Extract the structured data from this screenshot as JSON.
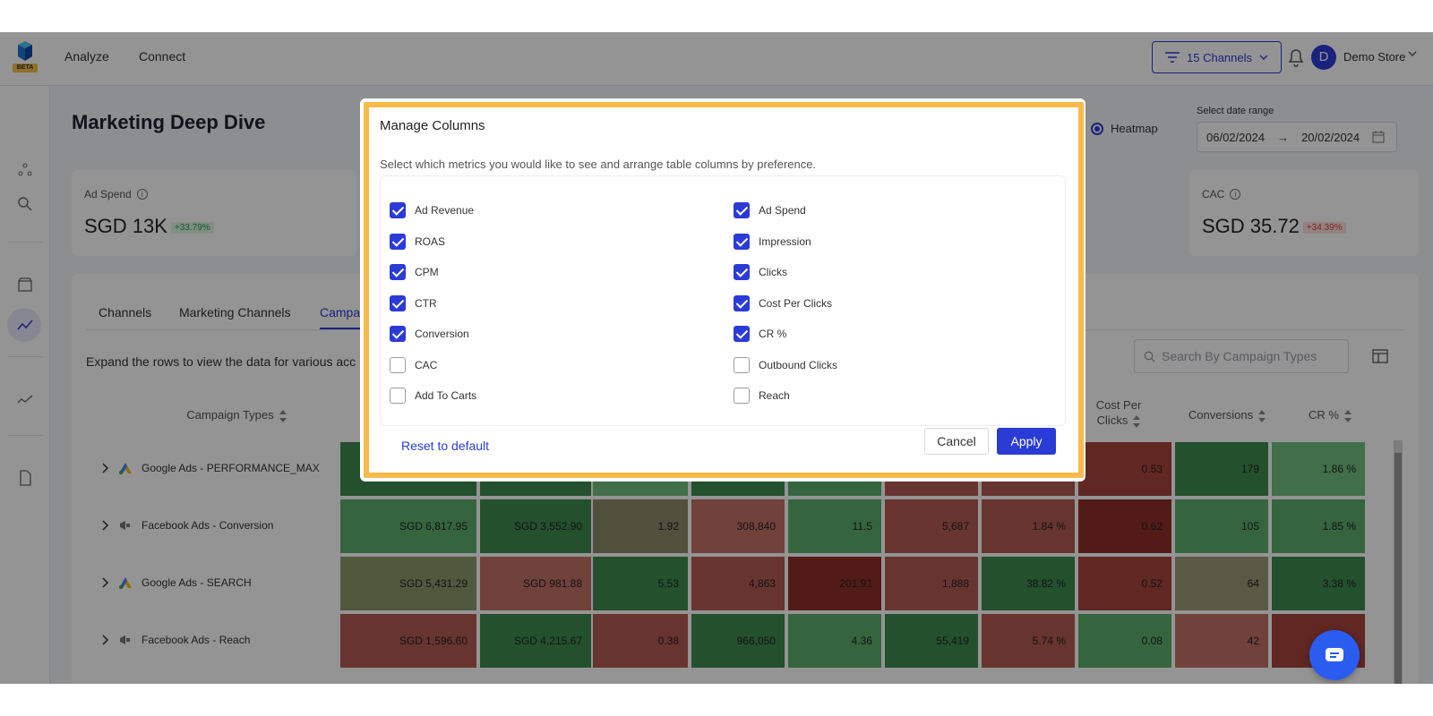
{
  "nav": {
    "links": [
      "Analyze",
      "Connect"
    ],
    "logo_badge": "BETA",
    "channels_label": "15 Channels",
    "avatar_initial": "D",
    "store_name": "Demo Store"
  },
  "page": {
    "title": "Marketing Deep Dive",
    "view_option": "Heatmap",
    "date_label": "Select date range",
    "date_from": "06/02/2024",
    "date_arrow": "→",
    "date_to": "20/02/2024"
  },
  "kpis": [
    {
      "label": "Ad Spend",
      "value": "SGD 13K",
      "change": "+33.79%"
    },
    {
      "label": "CAC",
      "value": "SGD 35.72",
      "change": "+34.39%"
    }
  ],
  "tabs": [
    "Channels",
    "Marketing Channels",
    "Campa"
  ],
  "table": {
    "hint": "Expand the rows to view the data for various acc",
    "search_placeholder": "Search By Campaign Types",
    "headers": {
      "campaign_types": "Campaign Types",
      "cpc_line1": "Cost Per",
      "cpc_line2": "Clicks",
      "conversions": "Conversions",
      "cr": "CR %"
    },
    "rows": [
      {
        "name": "Google Ads - PERFORMANCE_MAX",
        "icon": "google-ads-icon",
        "cells": [
          "",
          "",
          "",
          "",
          "",
          "",
          "",
          "0.53",
          "179",
          "1.86 %"
        ]
      },
      {
        "name": "Facebook Ads - Conversion",
        "icon": "megaphone-icon",
        "cells": [
          "SGD 6,817.95",
          "SGD 3,552.90",
          "1.92",
          "308,840",
          "11.5",
          "5,687",
          "1.84 %",
          "0.62",
          "105",
          "1.85 %"
        ]
      },
      {
        "name": "Google Ads - SEARCH",
        "icon": "google-ads-icon",
        "cells": [
          "SGD 5,431.29",
          "SGD 981.88",
          "5.53",
          "4,863",
          "201.91",
          "1,888",
          "38.82 %",
          "0.52",
          "64",
          "3.38 %"
        ]
      },
      {
        "name": "Facebook Ads - Reach",
        "icon": "megaphone-icon",
        "cells": [
          "SGD 1,596.60",
          "SGD 4,215.67",
          "0.38",
          "966,050",
          "4.36",
          "55,419",
          "5.74 %",
          "0.08",
          "42",
          "08 %"
        ]
      }
    ]
  },
  "modal": {
    "title": "Manage Columns",
    "description": "Select which metrics you would like to see and arrange table columns by preference.",
    "options_left": [
      {
        "label": "Ad Revenue",
        "checked": true
      },
      {
        "label": "ROAS",
        "checked": true
      },
      {
        "label": "CPM",
        "checked": true
      },
      {
        "label": "CTR",
        "checked": true
      },
      {
        "label": "Conversion",
        "checked": true
      },
      {
        "label": "CAC",
        "checked": false
      },
      {
        "label": "Add To Carts",
        "checked": false
      }
    ],
    "options_right": [
      {
        "label": "Ad Spend",
        "checked": true
      },
      {
        "label": "Impression",
        "checked": true
      },
      {
        "label": "Clicks",
        "checked": true
      },
      {
        "label": "Cost Per Clicks",
        "checked": true
      },
      {
        "label": "CR %",
        "checked": true
      },
      {
        "label": "Outbound Clicks",
        "checked": false
      },
      {
        "label": "Reach",
        "checked": false
      }
    ],
    "reset_label": "Reset to default",
    "cancel_label": "Cancel",
    "apply_label": "Apply"
  },
  "colors": {
    "accent": "#2b3bd6",
    "highlight": "#f9b94a"
  }
}
